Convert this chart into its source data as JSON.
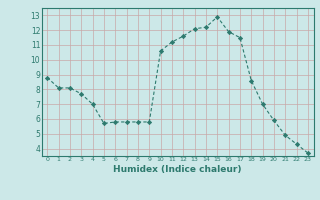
{
  "x": [
    0,
    1,
    2,
    3,
    4,
    5,
    6,
    7,
    8,
    9,
    10,
    11,
    12,
    13,
    14,
    15,
    16,
    17,
    18,
    19,
    20,
    21,
    22,
    23
  ],
  "y": [
    8.8,
    8.1,
    8.1,
    7.7,
    7.0,
    5.7,
    5.8,
    5.8,
    5.8,
    5.8,
    10.6,
    11.2,
    11.6,
    12.1,
    12.2,
    12.9,
    11.9,
    11.5,
    8.6,
    7.0,
    5.9,
    4.9,
    4.3,
    3.7
  ],
  "line_color": "#2d7a6e",
  "marker": "D",
  "markersize": 2.2,
  "linewidth": 0.8,
  "xlabel": "Humidex (Indice chaleur)",
  "xlim": [
    -0.5,
    23.5
  ],
  "ylim": [
    3.5,
    13.5
  ],
  "yticks": [
    4,
    5,
    6,
    7,
    8,
    9,
    10,
    11,
    12,
    13
  ],
  "xticks": [
    0,
    1,
    2,
    3,
    4,
    5,
    6,
    7,
    8,
    9,
    10,
    11,
    12,
    13,
    14,
    15,
    16,
    17,
    18,
    19,
    20,
    21,
    22,
    23
  ],
  "xtick_labels": [
    "0",
    "1",
    "2",
    "3",
    "4",
    "5",
    "6",
    "7",
    "8",
    "9",
    "10",
    "11",
    "12",
    "13",
    "14",
    "15",
    "16",
    "17",
    "18",
    "19",
    "20",
    "21",
    "22",
    "23"
  ],
  "bg_color": "#cce8e8",
  "grid_color": "#c8a8a8",
  "axis_bg_color": "#cce8e8",
  "tick_color": "#2d7a6e",
  "xlabel_color": "#2d7a6e"
}
